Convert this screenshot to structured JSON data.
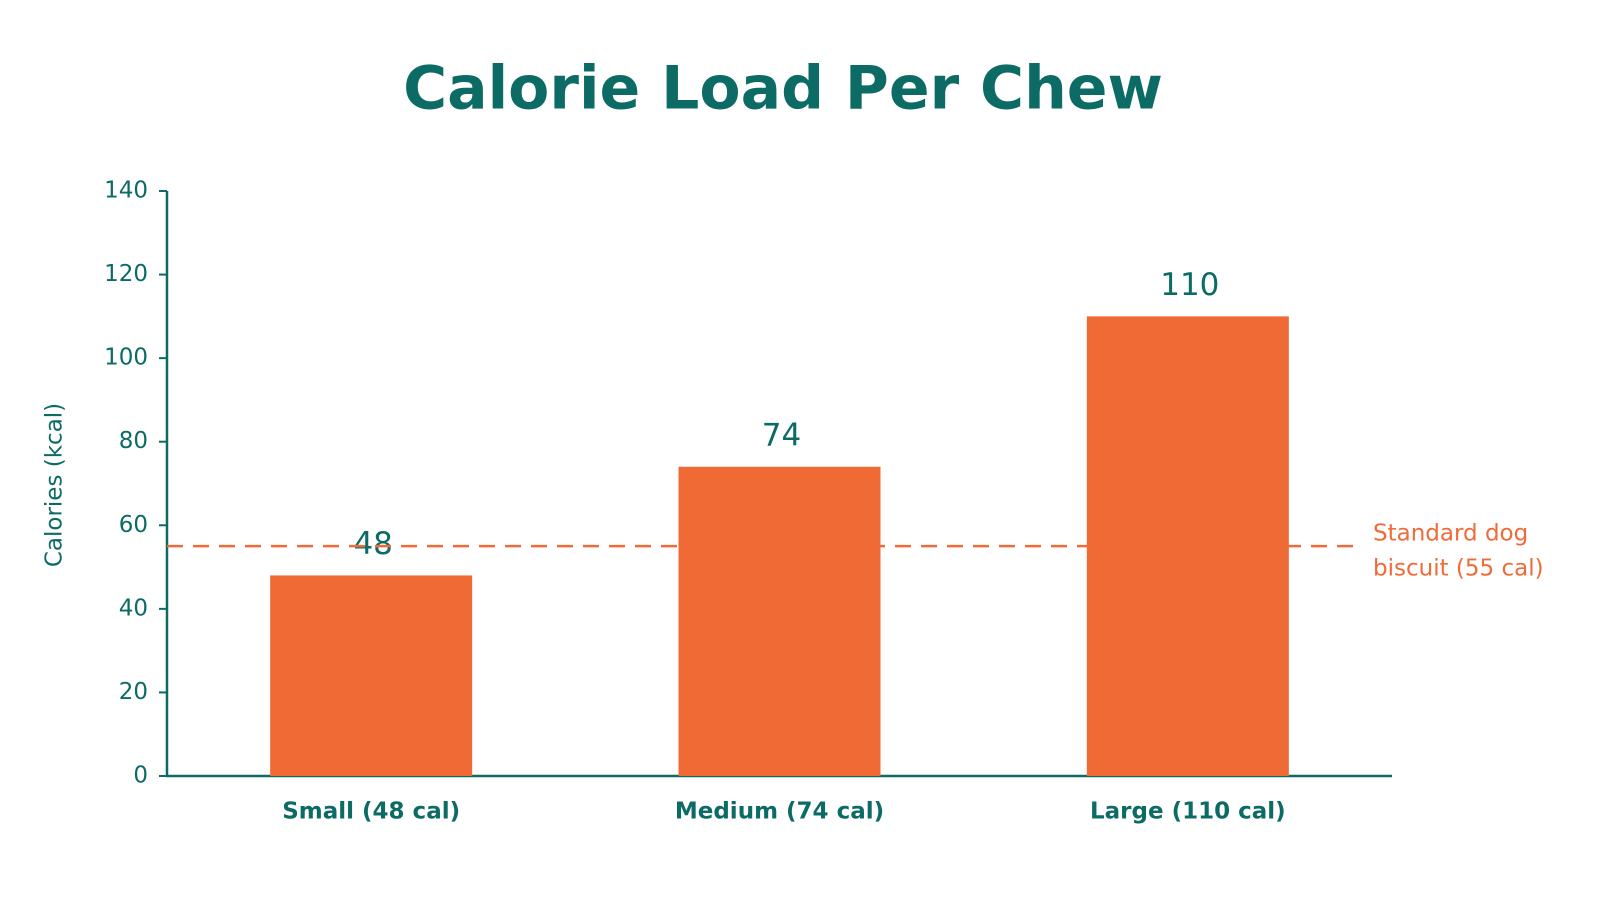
{
  "chart_data": {
    "type": "bar",
    "title": "Calorie Load Per Chew",
    "y_label": "Calories (kcal)",
    "categories": [
      "Small (48 cal)",
      "Medium (74 cal)",
      "Large (110 cal)"
    ],
    "values": [
      48,
      74,
      110
    ],
    "color": "#f06a35",
    "ylim": [
      0,
      140
    ],
    "yticks": [
      0,
      20,
      40,
      60,
      80,
      100,
      120,
      140
    ],
    "reference_line": {
      "value": 55,
      "label": [
        "Standard dog",
        "biscuit (55 cal)"
      ],
      "color": "#ef6b3a"
    }
  }
}
